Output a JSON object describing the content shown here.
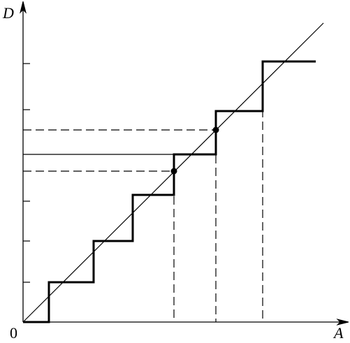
{
  "axes": {
    "y_label": "D",
    "x_label": "A",
    "origin_label": "0"
  }
}
